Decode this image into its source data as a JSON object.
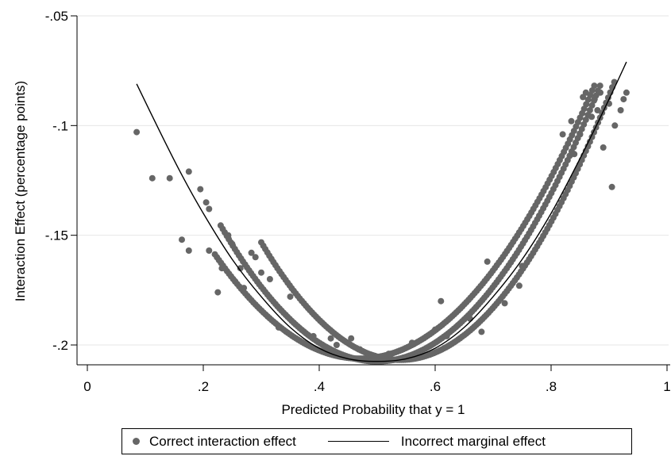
{
  "chart_data": {
    "type": "scatter",
    "title": "",
    "xlabel": "Predicted Probability that y = 1",
    "ylabel": "Interaction Effect (percentage points)",
    "xlim": [
      0,
      1
    ],
    "ylim": [
      -0.2075,
      -0.05
    ],
    "y_axis_reversed": true,
    "grid": true,
    "legend_position": "bottom",
    "x_ticks": [
      0,
      0.2,
      0.4,
      0.6,
      0.8,
      1
    ],
    "x_tick_labels": [
      "0",
      ".2",
      ".4",
      ".6",
      ".8",
      "1"
    ],
    "y_ticks": [
      -0.05,
      -0.1,
      -0.15,
      -0.2
    ],
    "y_tick_labels": [
      "-.05",
      "-.1",
      "-.15",
      "-.2"
    ],
    "colors": {
      "points": "#666666",
      "line": "#000000",
      "grid": "#e6e6e6"
    },
    "series": [
      {
        "name": "Correct interaction effect",
        "kind": "points",
        "points": [
          [
            0.085,
            -0.103
          ],
          [
            0.112,
            -0.124
          ],
          [
            0.142,
            -0.124
          ],
          [
            0.163,
            -0.152
          ],
          [
            0.175,
            -0.121
          ],
          [
            0.175,
            -0.157
          ],
          [
            0.195,
            -0.129
          ],
          [
            0.205,
            -0.135
          ],
          [
            0.21,
            -0.138
          ],
          [
            0.21,
            -0.157
          ],
          [
            0.225,
            -0.176
          ],
          [
            0.232,
            -0.165
          ],
          [
            0.243,
            -0.15
          ],
          [
            0.25,
            -0.154
          ],
          [
            0.255,
            -0.171
          ],
          [
            0.264,
            -0.165
          ],
          [
            0.27,
            -0.174
          ],
          [
            0.283,
            -0.158
          ],
          [
            0.29,
            -0.16
          ],
          [
            0.3,
            -0.167
          ],
          [
            0.315,
            -0.17
          ],
          [
            0.33,
            -0.192
          ],
          [
            0.35,
            -0.178
          ],
          [
            0.39,
            -0.196
          ],
          [
            0.43,
            -0.2
          ],
          [
            0.42,
            -0.197
          ],
          [
            0.455,
            -0.197
          ],
          [
            0.47,
            -0.202
          ],
          [
            0.52,
            -0.204
          ],
          [
            0.56,
            -0.199
          ],
          [
            0.6,
            -0.193
          ],
          [
            0.61,
            -0.18
          ],
          [
            0.62,
            -0.196
          ],
          [
            0.66,
            -0.188
          ],
          [
            0.68,
            -0.194
          ],
          [
            0.69,
            -0.162
          ],
          [
            0.72,
            -0.181
          ],
          [
            0.745,
            -0.173
          ],
          [
            0.75,
            -0.164
          ],
          [
            0.82,
            -0.104
          ],
          [
            0.835,
            -0.098
          ],
          [
            0.84,
            -0.113
          ],
          [
            0.85,
            -0.104
          ],
          [
            0.855,
            -0.087
          ],
          [
            0.86,
            -0.085
          ],
          [
            0.87,
            -0.096
          ],
          [
            0.875,
            -0.088
          ],
          [
            0.88,
            -0.093
          ],
          [
            0.885,
            -0.085
          ],
          [
            0.89,
            -0.11
          ],
          [
            0.9,
            -0.09
          ],
          [
            0.905,
            -0.128
          ],
          [
            0.91,
            -0.1
          ],
          [
            0.92,
            -0.093
          ],
          [
            0.925,
            -0.088
          ],
          [
            0.93,
            -0.085
          ]
        ]
      },
      {
        "name": "Incorrect marginal effect",
        "kind": "line",
        "points": [
          [
            0.085,
            -0.081
          ],
          [
            0.12,
            -0.1
          ],
          [
            0.16,
            -0.121
          ],
          [
            0.2,
            -0.14
          ],
          [
            0.25,
            -0.161
          ],
          [
            0.3,
            -0.178
          ],
          [
            0.35,
            -0.192
          ],
          [
            0.4,
            -0.2015
          ],
          [
            0.45,
            -0.2063
          ],
          [
            0.5,
            -0.2075
          ],
          [
            0.55,
            -0.2063
          ],
          [
            0.6,
            -0.2015
          ],
          [
            0.65,
            -0.192
          ],
          [
            0.7,
            -0.178
          ],
          [
            0.75,
            -0.161
          ],
          [
            0.8,
            -0.14
          ],
          [
            0.85,
            -0.115
          ],
          [
            0.9,
            -0.088
          ],
          [
            0.93,
            -0.071
          ]
        ]
      }
    ],
    "band_curves": [
      {
        "vertex_x": 0.47,
        "vertex_y": -0.2062,
        "k": 0.76,
        "x_from": 0.22,
        "x_to": 0.925,
        "step": 0.0035
      },
      {
        "vertex_x": 0.5,
        "vertex_y": -0.2075,
        "k": 0.85,
        "x_from": 0.23,
        "x_to": 0.93,
        "step": 0.0035
      },
      {
        "vertex_x": 0.54,
        "vertex_y": -0.2068,
        "k": 0.93,
        "x_from": 0.3,
        "x_to": 0.93,
        "step": 0.0035
      }
    ]
  },
  "legend": {
    "items": [
      {
        "label": "Correct interaction effect"
      },
      {
        "label": "Incorrect marginal effect"
      }
    ]
  }
}
